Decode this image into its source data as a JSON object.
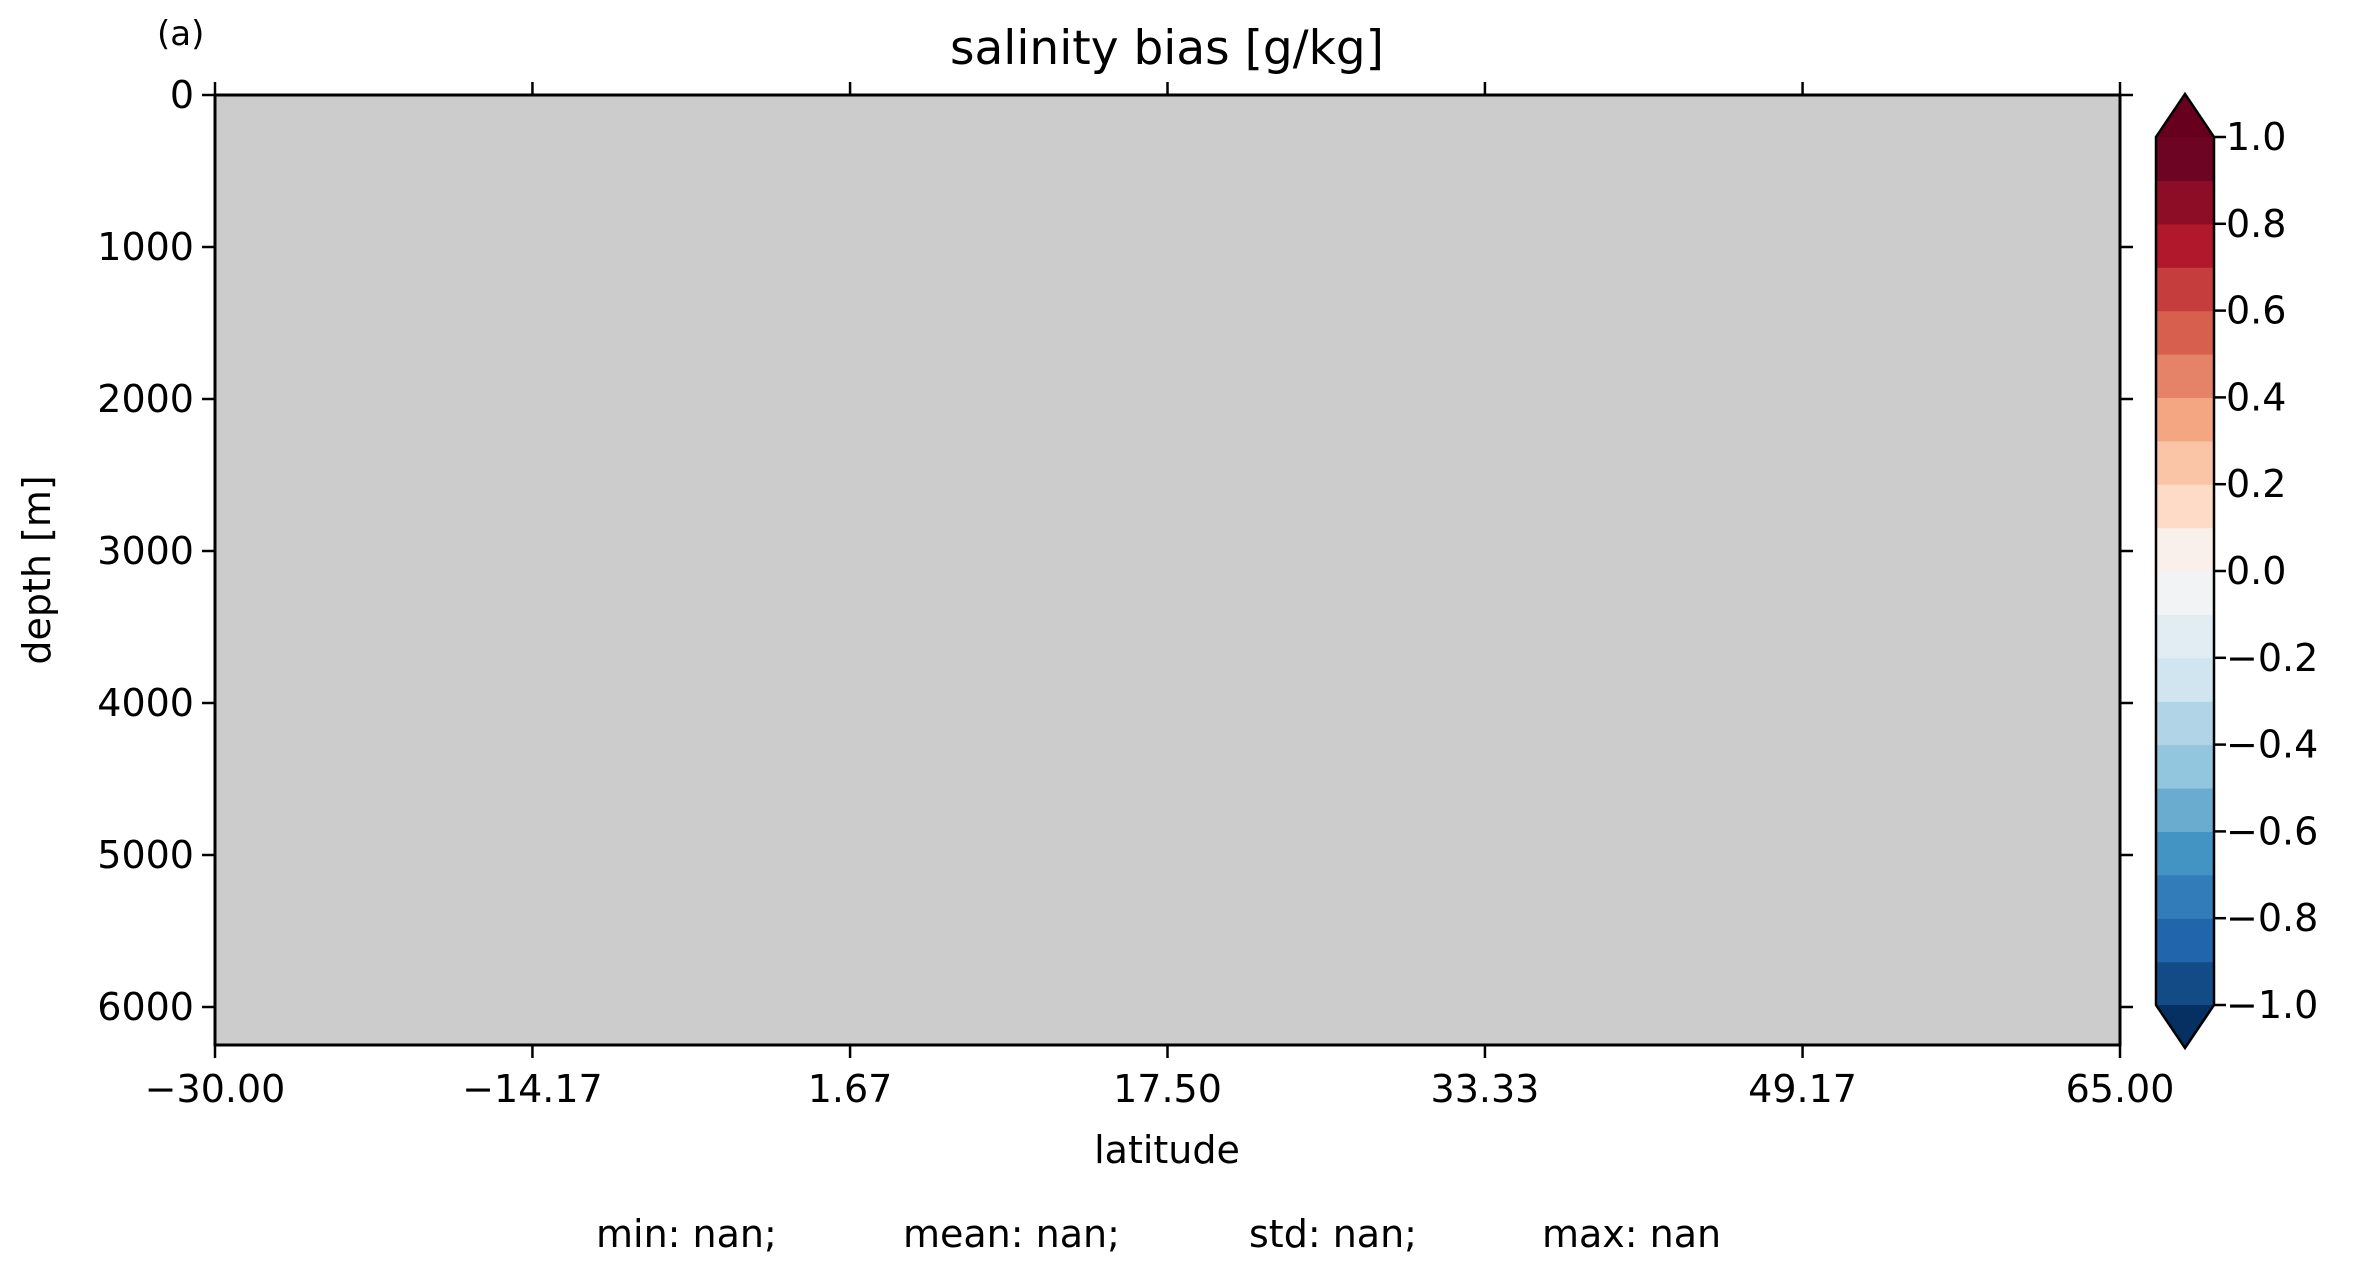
{
  "chart_data": {
    "type": "heatmap",
    "panel_label": "(a)",
    "title": "salinity bias [g/kg]",
    "xlabel": "latitude",
    "ylabel": "depth [m]",
    "xlim": [
      -30.0,
      65.0
    ],
    "ylim": [
      6250,
      0
    ],
    "xticks": [
      -30.0,
      -14.17,
      1.67,
      17.5,
      33.33,
      49.17,
      65.0
    ],
    "xtick_labels": [
      "−30.00",
      "−14.17",
      "1.67",
      "17.50",
      "33.33",
      "49.17",
      "65.00"
    ],
    "yticks": [
      0,
      1000,
      2000,
      3000,
      4000,
      5000,
      6000
    ],
    "ytick_labels": [
      "0",
      "1000",
      "2000",
      "3000",
      "4000",
      "5000",
      "6000"
    ],
    "field": "all values missing (nan)",
    "missing_color": "#cccccc",
    "colorbar": {
      "vmin": -1.0,
      "vmax": 1.0,
      "n_levels": 20,
      "extend": "both",
      "ticks": [
        1.0,
        0.8,
        0.6,
        0.4,
        0.2,
        0.0,
        -0.2,
        -0.4,
        -0.6,
        -0.8,
        -1.0
      ],
      "tick_labels": [
        "1.0",
        "0.8",
        "0.6",
        "0.4",
        "0.2",
        "0.0",
        "−0.2",
        "−0.4",
        "−0.6",
        "−0.8",
        "−1.0"
      ],
      "colors_bottom_to_top": [
        "#134b87",
        "#2166ac",
        "#327cb9",
        "#4393c3",
        "#6aacd0",
        "#92c5de",
        "#b1d5e7",
        "#d1e5f0",
        "#e1edf3",
        "#f1f3f5",
        "#f9f0eb",
        "#fddbc7",
        "#fac5a7",
        "#f4a582",
        "#e58368",
        "#d6604d",
        "#c53e3d",
        "#b2182b",
        "#8c0d25",
        "#6d0423"
      ],
      "under_color": "#053061",
      "over_color": "#67001f"
    },
    "stats": [
      "min: nan;",
      "mean: nan;",
      "std: nan;",
      "max: nan"
    ]
  }
}
